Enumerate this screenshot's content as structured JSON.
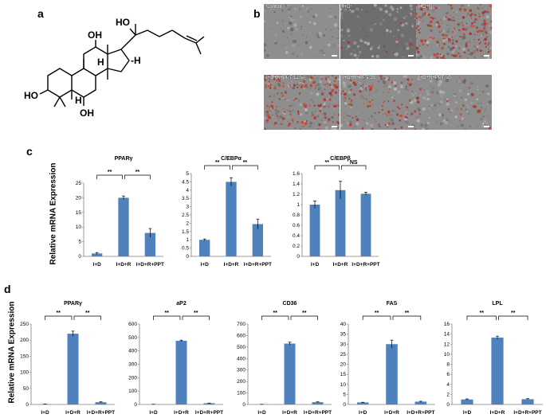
{
  "panels": {
    "a": "a",
    "b": "b",
    "c": "c",
    "d": "d"
  },
  "structure": {
    "labels": {
      "oh_top": "HO",
      "oh_12": "OH",
      "oh_3": "HO",
      "oh_6": "OH",
      "h_side": "-H",
      "h_ring": "H",
      "h_low": "H"
    }
  },
  "micrographs": [
    {
      "label": "Control",
      "stain": 0.0
    },
    {
      "label": "I+D",
      "stain": 0.05
    },
    {
      "label": "I+D+R",
      "stain": 0.9
    },
    {
      "label": "I+D+R+PPT 12.5",
      "stain": 0.75
    },
    {
      "label": "I+D+R+PPT 25",
      "stain": 0.45
    },
    {
      "label": "I+D+R+PPT 50",
      "stain": 0.15
    }
  ],
  "c_ylabel": "Relative mRNA Expression",
  "d_ylabel": "Relative mRNA Expression",
  "colors": {
    "bar": "#4f81bd",
    "axis": "#7f7f7f",
    "stain": "#c0392b"
  },
  "chart_data": [
    {
      "type": "bar",
      "id": "c1",
      "title": "PPARγ",
      "categories": [
        "I+D",
        "I+D+R",
        "I+D+R+PPT"
      ],
      "values": [
        1,
        20,
        8
      ],
      "errors": [
        0.3,
        0.6,
        1.5
      ],
      "ylim": [
        0,
        25
      ],
      "yticks": [
        "0",
        "5",
        "10",
        "15",
        "20",
        "25"
      ],
      "sig": [
        "**",
        "**"
      ]
    },
    {
      "type": "bar",
      "id": "c2",
      "title": "C/EBPα",
      "categories": [
        "I+D",
        "I+D+R",
        "I+D+R+PPT"
      ],
      "values": [
        1,
        4.5,
        1.95
      ],
      "errors": [
        0.05,
        0.25,
        0.3
      ],
      "ylim": [
        0,
        5
      ],
      "yticks": [
        "0",
        "0.5",
        "1",
        "1.5",
        "2",
        "2.5",
        "3",
        "3.5",
        "4",
        "4.5",
        "5"
      ],
      "sig": [
        "**",
        "**"
      ]
    },
    {
      "type": "bar",
      "id": "c3",
      "title": "C/EBPβ",
      "categories": [
        "I+D",
        "I+D+R",
        "I+D+R+PPT"
      ],
      "values": [
        1,
        1.28,
        1.21
      ],
      "errors": [
        0.07,
        0.17,
        0.03
      ],
      "ylim": [
        0,
        1.6
      ],
      "yticks": [
        "0",
        "0.2",
        "0.4",
        "0.6",
        "0.8",
        "1",
        "1.2",
        "1.4",
        "1.6"
      ],
      "sig": [
        "**",
        "NS"
      ]
    },
    {
      "type": "bar",
      "id": "d1",
      "title": "PPARγ",
      "categories": [
        "I+D",
        "I+D+R",
        "I+D+R+PPT"
      ],
      "values": [
        1,
        220,
        7
      ],
      "errors": [
        0.5,
        8,
        1.5
      ],
      "ylim": [
        0,
        250
      ],
      "yticks": [
        "0",
        "50",
        "100",
        "150",
        "200",
        "250"
      ],
      "sig": [
        "**",
        "**"
      ]
    },
    {
      "type": "bar",
      "id": "d2",
      "title": "aP2",
      "categories": [
        "I+D",
        "I+D+R",
        "I+D+R+PPT"
      ],
      "values": [
        1,
        475,
        9
      ],
      "errors": [
        0.5,
        5,
        1.5
      ],
      "ylim": [
        0,
        600
      ],
      "yticks": [
        "0",
        "100",
        "200",
        "300",
        "400",
        "500",
        "600"
      ],
      "sig": [
        "**",
        "**"
      ]
    },
    {
      "type": "bar",
      "id": "d3",
      "title": "CD36",
      "categories": [
        "I+D",
        "I+D+R",
        "I+D+R+PPT"
      ],
      "values": [
        1,
        530,
        20
      ],
      "errors": [
        0.5,
        12,
        3
      ],
      "ylim": [
        0,
        700
      ],
      "yticks": [
        "0",
        "100",
        "200",
        "300",
        "400",
        "500",
        "600",
        "700"
      ],
      "sig": [
        "**",
        "**"
      ]
    },
    {
      "type": "bar",
      "id": "d4",
      "title": "FAS",
      "categories": [
        "I+D",
        "I+D+R",
        "I+D+R+PPT"
      ],
      "values": [
        1,
        30,
        1.4
      ],
      "errors": [
        0.1,
        2,
        0.2
      ],
      "ylim": [
        0,
        40
      ],
      "yticks": [
        "0",
        "5",
        "10",
        "15",
        "20",
        "25",
        "30",
        "35",
        "40"
      ],
      "sig": [
        "**",
        "**"
      ]
    },
    {
      "type": "bar",
      "id": "d5",
      "title": "LPL",
      "categories": [
        "I+D",
        "I+D+R",
        "I+D+R+PPT"
      ],
      "values": [
        1,
        13.3,
        1.05
      ],
      "errors": [
        0.1,
        0.3,
        0.1
      ],
      "ylim": [
        0,
        16
      ],
      "yticks": [
        "0",
        "2",
        "4",
        "6",
        "8",
        "10",
        "12",
        "14",
        "16"
      ],
      "sig": [
        "**",
        "**"
      ]
    }
  ]
}
